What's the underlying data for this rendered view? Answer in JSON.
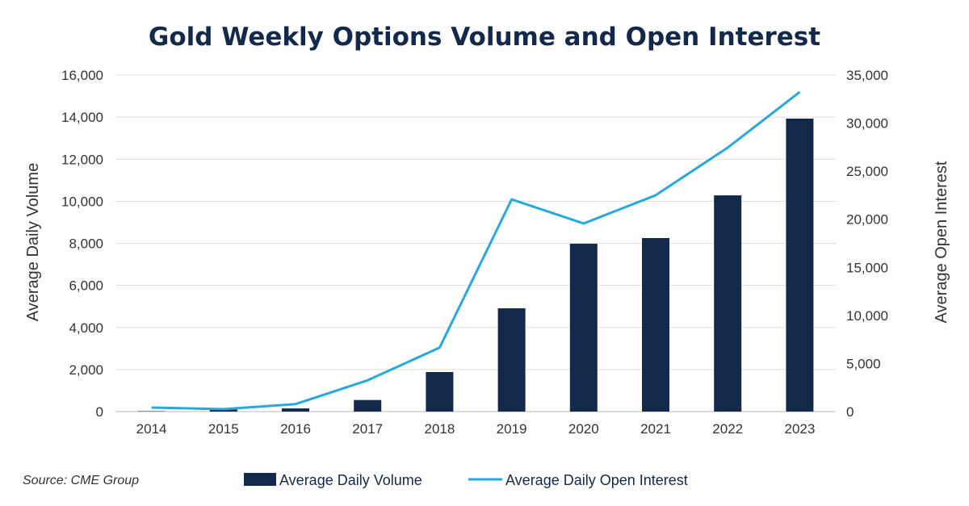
{
  "chart_data": {
    "type": "bar+line",
    "title": "Gold Weekly Options Volume and Open Interest",
    "categories": [
      "2014",
      "2015",
      "2016",
      "2017",
      "2018",
      "2019",
      "2020",
      "2021",
      "2022",
      "2023"
    ],
    "series": [
      {
        "name": "Average Daily Volume",
        "type": "bar",
        "axis": "left",
        "color": "#13294b",
        "values": [
          20,
          100,
          150,
          550,
          1880,
          4910,
          7980,
          8250,
          10280,
          13930
        ]
      },
      {
        "name": "Average Daily Open Interest",
        "type": "line",
        "axis": "right",
        "color": "#29a8df",
        "values": [
          420,
          250,
          780,
          3250,
          6650,
          22070,
          19560,
          22500,
          27450,
          33240
        ]
      }
    ],
    "ylabel": "Average Daily Volume",
    "ylabel_right": "Average Open Interest",
    "ylim": [
      0,
      16000
    ],
    "ylim_right": [
      0,
      35000
    ],
    "yticks": [
      "0",
      "2,000",
      "4,000",
      "6,000",
      "8,000",
      "10,000",
      "12,000",
      "14,000",
      "16,000"
    ],
    "yticks_right": [
      "0",
      "5,000",
      "10,000",
      "15,000",
      "20,000",
      "25,000",
      "30,000",
      "35,000"
    ],
    "grid": true,
    "legend": "bottom",
    "source": "Source: CME Group"
  }
}
